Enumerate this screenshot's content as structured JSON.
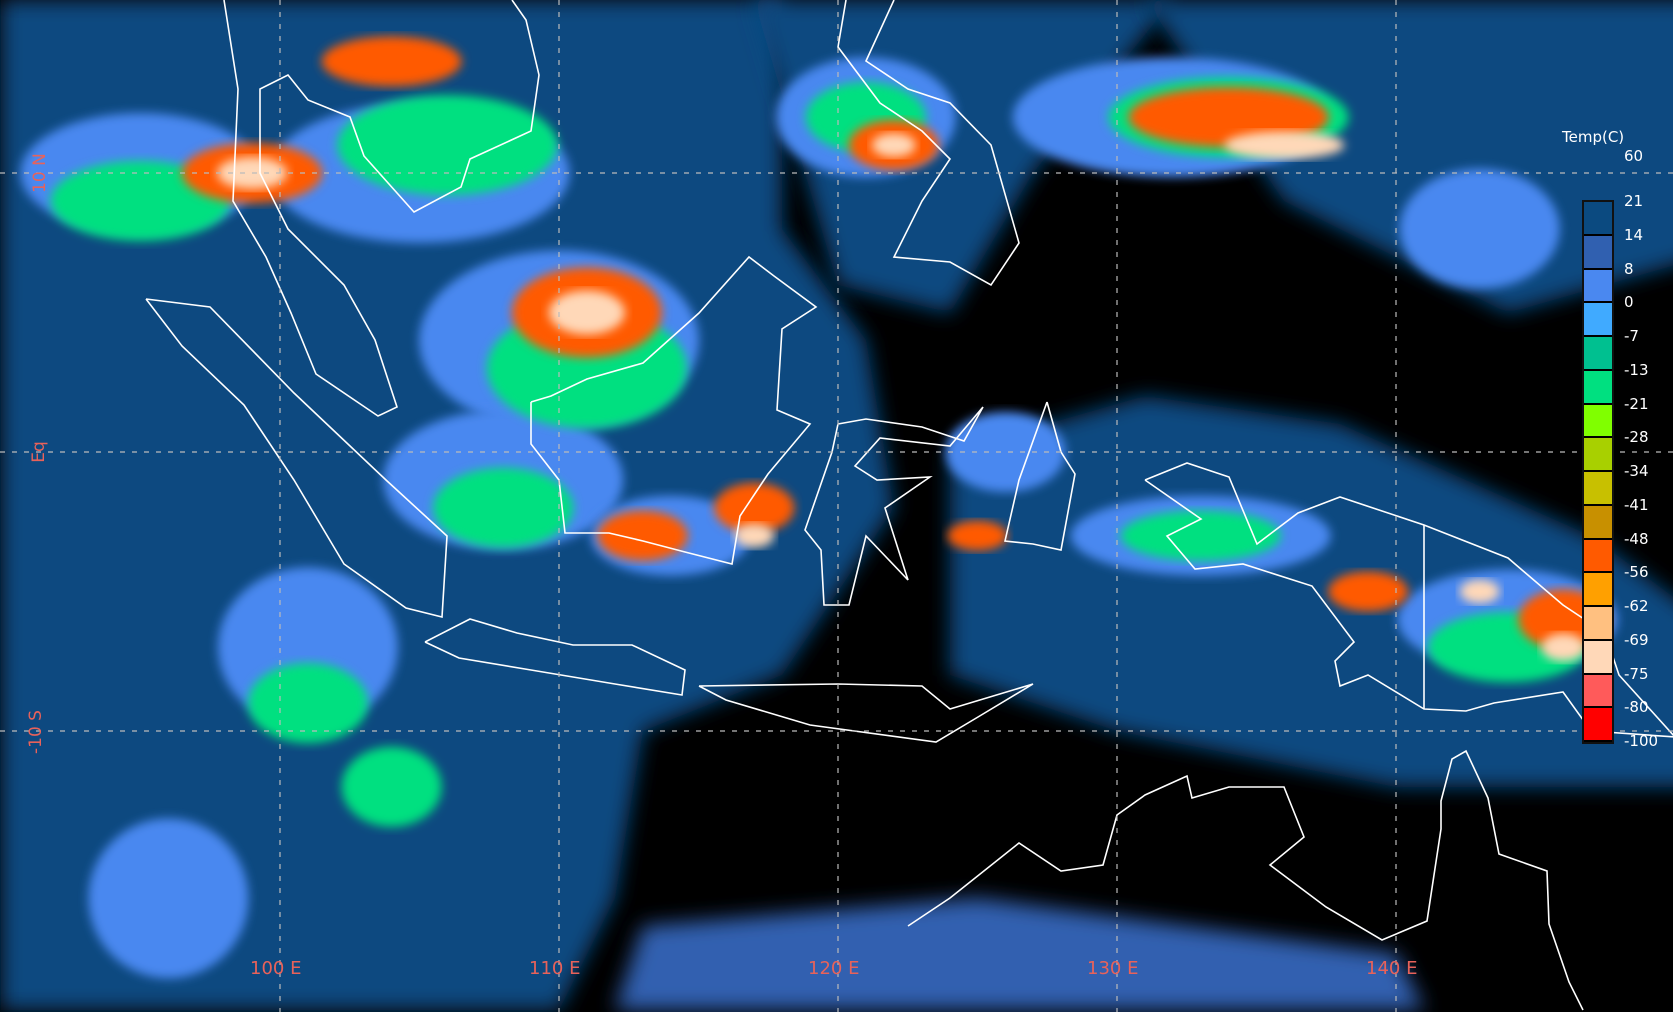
{
  "legend": {
    "title": "Temp(C)",
    "labels": [
      "60",
      "21",
      "14",
      "8",
      "0",
      "-7",
      "-13",
      "-21",
      "-28",
      "-34",
      "-41",
      "-48",
      "-56",
      "-62",
      "-69",
      "-75",
      "-80",
      "-100"
    ],
    "colors": [
      "#0b4a80",
      "#3060b0",
      "#4a88f0",
      "#40aaff",
      "#00c090",
      "#00e080",
      "#80ff00",
      "#a8d000",
      "#c8c000",
      "#c89000",
      "#ff5a00",
      "#ffa000",
      "#ffc080",
      "#ffd8b8",
      "#ff5a5a",
      "#ff0000"
    ]
  },
  "latitude_labels": [
    "10 N",
    "Eq",
    "-10 S"
  ],
  "longitude_labels": [
    "100 E",
    "110 E",
    "120 E",
    "130 E",
    "140 E"
  ],
  "colors": {
    "grid_label": "#e8625a",
    "coastline": "#ffffff",
    "clear_sky": "#000000",
    "ocean_low_cloud": "#0b4a80"
  }
}
